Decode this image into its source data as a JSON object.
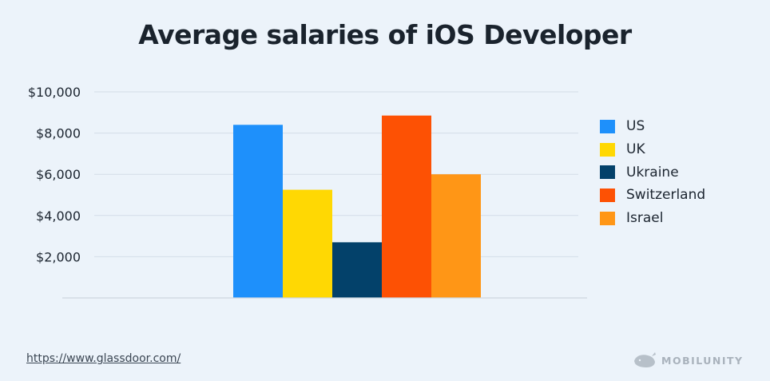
{
  "chart_data": {
    "type": "bar",
    "title": "Average salaries of iOS Developer",
    "xlabel": "",
    "ylabel": "",
    "ylim": [
      0,
      10000
    ],
    "yticks": [
      2000,
      4000,
      6000,
      8000,
      10000
    ],
    "ytick_labels": [
      "$2,000",
      "$4,000",
      "$6,000",
      "$8,000",
      "$10,000"
    ],
    "grid": true,
    "legend_position": "right",
    "categories": [
      "US",
      "UK",
      "Ukraine",
      "Switzerland",
      "Israel"
    ],
    "values": [
      8400,
      5250,
      2700,
      8850,
      6000
    ],
    "colors": [
      "#1e90fb",
      "#ffd803",
      "#03416a",
      "#fd5104",
      "#ff9616"
    ]
  },
  "source": "https://www.glassdoor.com/",
  "brand": "MOBILUNITY",
  "icons": {
    "brand_logo": "whale-icon"
  }
}
